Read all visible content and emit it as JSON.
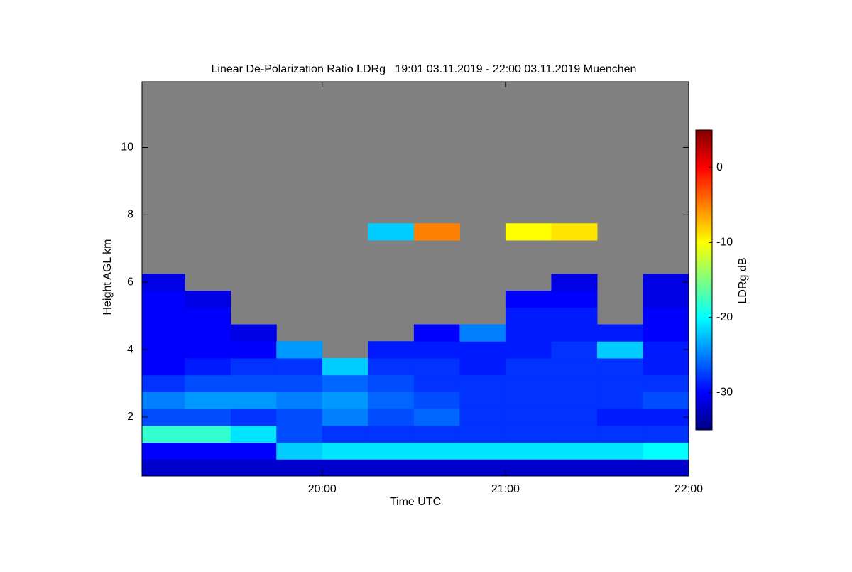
{
  "chart_data": {
    "type": "heatmap",
    "title": "Linear De-Polarization Ratio LDRg   19:01 03.11.2019 - 22:00 03.11.2019 Muenchen",
    "x_label": "Time UTC",
    "y_label": "Height AGL km",
    "colorbar_label": "LDRg dB",
    "x": [
      19.125,
      19.375,
      19.625,
      19.875,
      20.125,
      20.375,
      20.625,
      20.875,
      21.125,
      21.375,
      21.625,
      21.875
    ],
    "y": [
      0.5,
      1.0,
      1.5,
      2.0,
      2.5,
      3.0,
      3.5,
      4.0,
      4.5,
      5.0,
      5.5,
      6.0,
      6.5,
      7.0,
      7.5
    ],
    "z": [
      [
        -32,
        -32,
        -32,
        -32,
        -32,
        -32,
        -32,
        -32,
        -32,
        -32,
        -32,
        -32
      ],
      [
        -30,
        -30,
        -30,
        -22,
        -21,
        -21,
        -21,
        -21,
        -21,
        -21,
        -21,
        -20
      ],
      [
        -18,
        -18,
        -21,
        -27,
        -28,
        -28,
        -28,
        -28,
        -28,
        -28,
        -28,
        -28
      ],
      [
        -27,
        -27,
        -28,
        -27,
        -25,
        -27,
        -26,
        -28,
        -28,
        -28,
        -29,
        -29
      ],
      [
        -25,
        -24,
        -24,
        -25,
        -24,
        -26,
        -27,
        -28,
        -28,
        -28,
        -28,
        -27
      ],
      [
        -28,
        -27,
        -27,
        -27,
        -26,
        -27,
        -28,
        -28,
        -28,
        -28,
        -28,
        -28
      ],
      [
        -30,
        -29,
        -28,
        -28,
        -22,
        -28,
        -28,
        -29,
        -28,
        -28,
        -28,
        -29
      ],
      [
        -30,
        -30,
        -30,
        -24,
        null,
        -29,
        -29,
        -29,
        -29,
        -28,
        -22,
        -29
      ],
      [
        -30,
        -30,
        -31,
        null,
        null,
        null,
        -30,
        -25,
        -29,
        -29,
        -29,
        -30
      ],
      [
        -30,
        -30,
        null,
        null,
        null,
        null,
        null,
        null,
        -29,
        -29,
        null,
        -30
      ],
      [
        -30,
        -31,
        null,
        null,
        null,
        null,
        null,
        null,
        -30,
        -30,
        null,
        -31
      ],
      [
        -31,
        null,
        null,
        null,
        null,
        null,
        null,
        null,
        null,
        -31,
        null,
        -31
      ],
      [
        null,
        null,
        null,
        null,
        null,
        null,
        null,
        null,
        null,
        null,
        null,
        null
      ],
      [
        null,
        null,
        null,
        null,
        null,
        null,
        null,
        null,
        null,
        null,
        null,
        null
      ],
      [
        null,
        null,
        null,
        null,
        null,
        -22,
        -5,
        null,
        -10,
        -9,
        null,
        null
      ]
    ],
    "xlim": [
      19.0167,
      22
    ],
    "xticks": [
      {
        "value": 20,
        "label": "20:00"
      },
      {
        "value": 21,
        "label": "21:00"
      },
      {
        "value": 22,
        "label": "22:00"
      }
    ],
    "ylim": [
      0.25,
      11.95
    ],
    "yticks": [
      2,
      4,
      6,
      8,
      10
    ],
    "clim": [
      -35,
      5
    ],
    "cticks": [
      -30,
      -20,
      -10,
      0
    ],
    "colormap": "jet",
    "background": "#808080"
  }
}
